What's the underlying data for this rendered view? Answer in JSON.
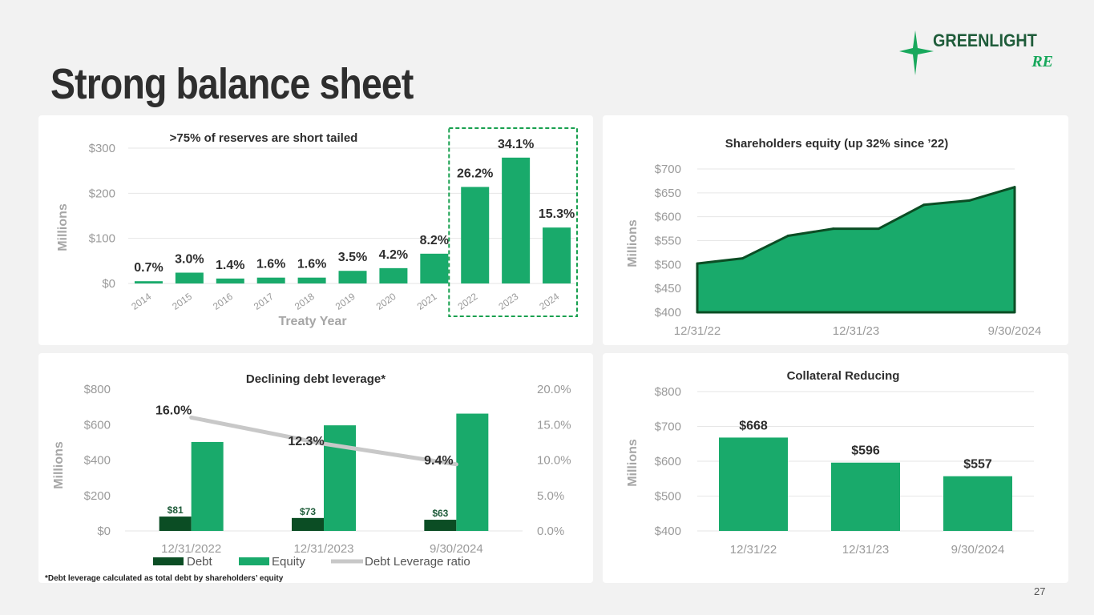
{
  "page": {
    "title": "Strong balance sheet",
    "footnote": "*Debt leverage calculated as total debt by shareholders’ equity",
    "page_number": "27",
    "logo": {
      "line1": "GREENLIGHT",
      "line2": "RE"
    }
  },
  "colors": {
    "green": "#19aa6b",
    "dark_green": "#0b4d24",
    "grey_line": "#c8c8c8",
    "dashed": "#18a04f"
  },
  "chart_data": [
    {
      "id": "reserves",
      "type": "bar",
      "title": ">75% of reserves are short tailed",
      "xlabel": "Treaty Year",
      "ylabel": "Millions",
      "ylim": [
        0,
        300
      ],
      "yticks": [
        "$0",
        "$100",
        "$200",
        "$300"
      ],
      "ytick_values": [
        0,
        100,
        200,
        300
      ],
      "categories": [
        "2014",
        "2015",
        "2016",
        "2017",
        "2018",
        "2019",
        "2020",
        "2021",
        "2022",
        "2023",
        "2024"
      ],
      "values": [
        5,
        24,
        11,
        13,
        13,
        28,
        34,
        66,
        214,
        279,
        124
      ],
      "labels": [
        "0.7%",
        "3.0%",
        "1.4%",
        "1.6%",
        "1.6%",
        "3.5%",
        "4.2%",
        "8.2%",
        "26.2%",
        "34.1%",
        "15.3%"
      ],
      "highlight": [
        "2022",
        "2023",
        "2024"
      ]
    },
    {
      "id": "equity",
      "type": "area",
      "title": "Shareholders equity (up 32% since ’22)",
      "ylabel": "Millions",
      "ylim": [
        400,
        700
      ],
      "yticks": [
        "$400",
        "$450",
        "$500",
        "$550",
        "$600",
        "$650",
        "$700"
      ],
      "ytick_values": [
        400,
        450,
        500,
        550,
        600,
        650,
        700
      ],
      "x_labels": [
        "12/31/22",
        "12/31/23",
        "9/30/2024"
      ],
      "values": [
        502,
        513,
        560,
        575,
        575,
        625,
        634,
        662
      ]
    },
    {
      "id": "leverage",
      "type": "bar",
      "title": "Declining debt leverage*",
      "ylabel": "Millions",
      "ylim": [
        0,
        800
      ],
      "yticks": [
        "$0",
        "$200",
        "$400",
        "$600",
        "$800"
      ],
      "ytick_values": [
        0,
        200,
        400,
        600,
        800
      ],
      "y2lim": [
        0,
        20
      ],
      "y2ticks": [
        "0.0%",
        "5.0%",
        "10.0%",
        "15.0%",
        "20.0%"
      ],
      "y2tick_values": [
        0,
        5,
        10,
        15,
        20
      ],
      "categories": [
        "12/31/2022",
        "12/31/2023",
        "9/30/2024"
      ],
      "series": [
        {
          "name": "Debt",
          "values": [
            81,
            73,
            63
          ],
          "labels": [
            "$81",
            "$73",
            "$63"
          ]
        },
        {
          "name": "Equity",
          "values": [
            502,
            596,
            662
          ]
        },
        {
          "name": "Debt Leverage ratio",
          "values": [
            16.0,
            12.3,
            9.4
          ],
          "labels": [
            "16.0%",
            "12.3%",
            "9.4%"
          ],
          "axis": "secondary"
        }
      ]
    },
    {
      "id": "collateral",
      "type": "bar",
      "title": "Collateral Reducing",
      "ylabel": "Millions",
      "ylim": [
        400,
        800
      ],
      "yticks": [
        "$400",
        "$500",
        "$600",
        "$700",
        "$800"
      ],
      "ytick_values": [
        400,
        500,
        600,
        700,
        800
      ],
      "categories": [
        "12/31/22",
        "12/31/23",
        "9/30/2024"
      ],
      "values": [
        668,
        596,
        557
      ],
      "labels": [
        "$668",
        "$596",
        "$557"
      ]
    }
  ]
}
